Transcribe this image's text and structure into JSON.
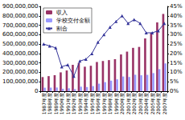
{
  "chart_data": {
    "type": "bar",
    "categories": [
      "1987年度",
      "1988年度",
      "1989年度",
      "1990年度",
      "1991年度",
      "1992年度",
      "1993年度",
      "1994年度",
      "1995年度",
      "1996年度",
      "1997年度",
      "1998年度",
      "1999年度",
      "2000年度",
      "2001年度",
      "2002年度",
      "2003年度",
      "2004年度",
      "2005年度",
      "2006年度",
      "2007年度"
    ],
    "series": [
      {
        "name": "収入",
        "type": "bar",
        "color": "#993366",
        "values": [
          150000000,
          160000000,
          170000000,
          200000000,
          220000000,
          280000000,
          300000000,
          260000000,
          270000000,
          310000000,
          320000000,
          330000000,
          340000000,
          390000000,
          420000000,
          460000000,
          470000000,
          560000000,
          620000000,
          730000000,
          820000000
        ]
      },
      {
        "name": "学校交付金額",
        "type": "bar",
        "color": "#9999ff",
        "values": [
          37000000,
          38000000,
          39000000,
          26000000,
          31000000,
          22000000,
          48000000,
          44000000,
          54000000,
          80000000,
          96000000,
          112000000,
          126000000,
          156000000,
          151000000,
          175000000,
          169000000,
          174000000,
          192000000,
          234000000,
          295000000
        ]
      },
      {
        "name": "割合",
        "type": "line",
        "axis": "y2",
        "color": "#333399",
        "marker": "triangle",
        "values": [
          25,
          24,
          23,
          13,
          14,
          8,
          16,
          17,
          20,
          26,
          30,
          34,
          37,
          40,
          36,
          38,
          36,
          31,
          31,
          32,
          36
        ]
      }
    ],
    "ylim": [
      0,
      900000000
    ],
    "yticks": [
      0,
      {
        "value": 100000000,
        "label": "100,000,000"
      },
      {
        "value": 200000000,
        "label": "200,000,000"
      },
      {
        "value": 300000000,
        "label": "300,000,000"
      },
      {
        "value": 400000000,
        "label": "400,000,000"
      },
      {
        "value": 500000000,
        "label": "500,000,000"
      },
      {
        "value": 600000000,
        "label": "600,000,000"
      },
      {
        "value": 700000000,
        "label": "700,000,000"
      },
      {
        "value": 800000000,
        "label": "800,000,000"
      },
      {
        "value": 900000000,
        "label": "900,000,000"
      }
    ],
    "y2lim": [
      0,
      45
    ],
    "y2ticks": [
      {
        "value": 0,
        "label": "0%"
      },
      {
        "value": 5,
        "label": "5%"
      },
      {
        "value": 10,
        "label": "10%"
      },
      {
        "value": 15,
        "label": "15%"
      },
      {
        "value": 20,
        "label": "20%"
      },
      {
        "value": 25,
        "label": "25%"
      },
      {
        "value": 30,
        "label": "30%"
      },
      {
        "value": 35,
        "label": "35%"
      },
      {
        "value": 40,
        "label": "40%"
      },
      {
        "value": 45,
        "label": "45%"
      }
    ],
    "grid": false,
    "legend": "upper left"
  }
}
